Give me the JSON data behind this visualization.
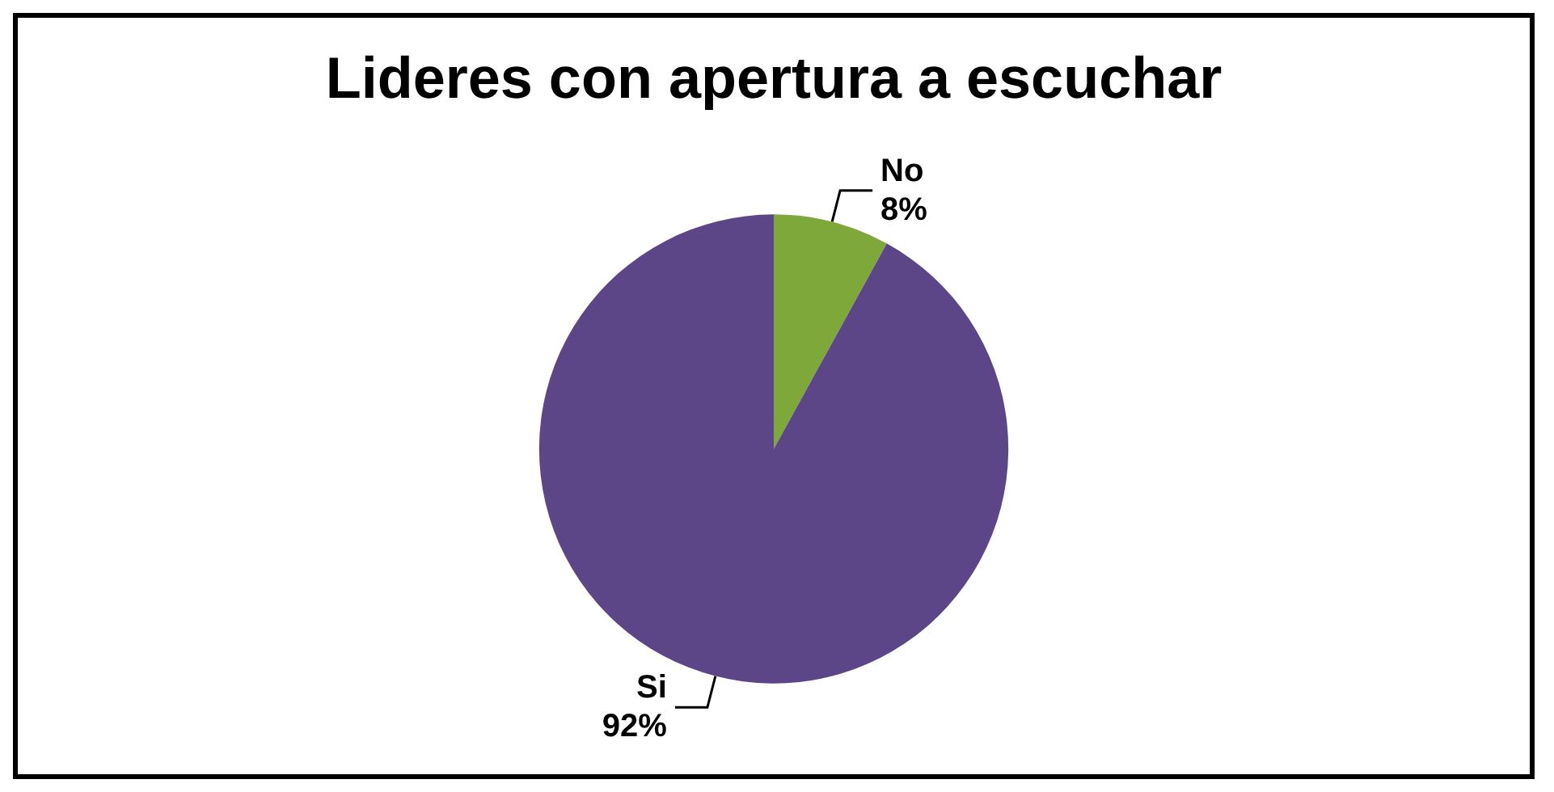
{
  "chart_data": {
    "type": "pie",
    "title": "Lideres con apertura a escuchar",
    "categories": [
      "No",
      "Si"
    ],
    "values": [
      8,
      92
    ],
    "value_labels": [
      "8%",
      "92%"
    ],
    "colors": [
      "#7fa83a",
      "#5c4688"
    ],
    "legend": false
  }
}
